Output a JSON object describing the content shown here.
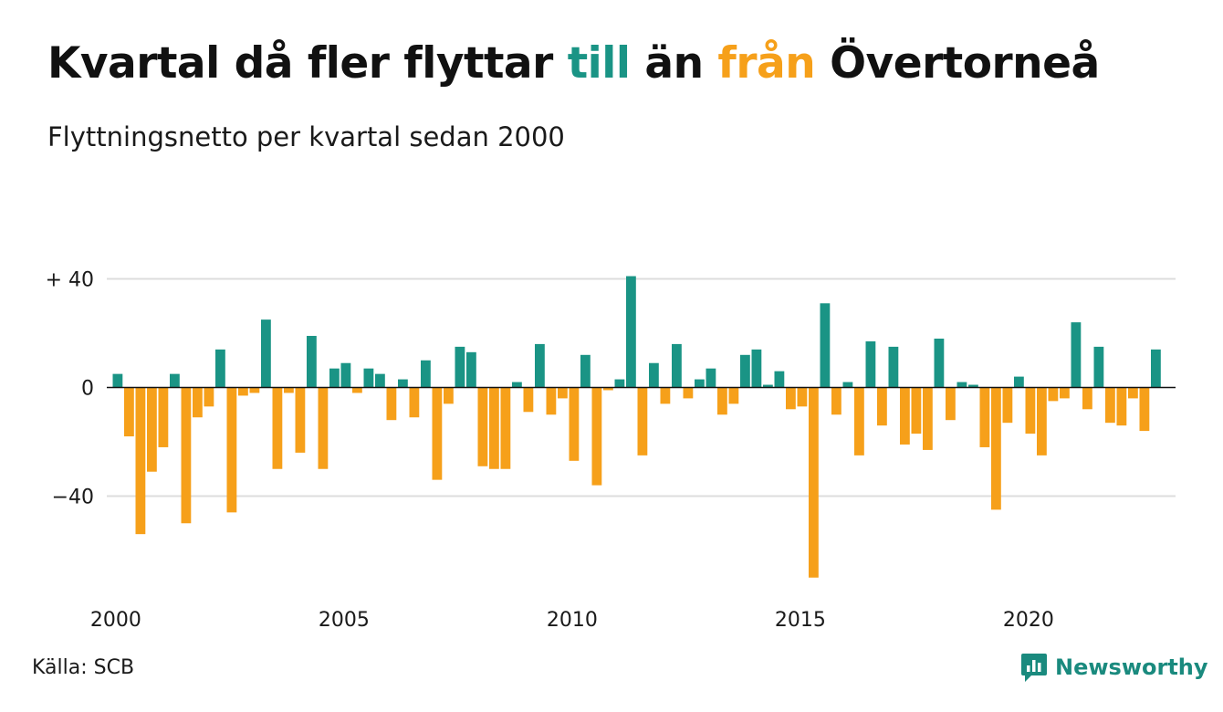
{
  "title": {
    "part1": "Kvartal då fler flyttar ",
    "word_in": "till",
    "part2": " än ",
    "word_out": "från",
    "part3": " Övertorneå"
  },
  "subtitle": "Flyttningsnetto per kvartal sedan 2000",
  "source": "Källa: SCB",
  "brand": "Newsworthy",
  "colors": {
    "positive": "#1a9485",
    "negative": "#f6a01a",
    "grid": "#dddddd",
    "zero_line": "#111111",
    "text": "#111111",
    "brand": "#1a8a7e"
  },
  "chart_data": {
    "type": "bar",
    "start_year": 2000,
    "quarters_per_year": 4,
    "values": [
      5,
      -18,
      -54,
      -31,
      -22,
      5,
      -50,
      -11,
      -7,
      14,
      -46,
      -3,
      -2,
      25,
      -30,
      -2,
      -24,
      19,
      -30,
      7,
      9,
      -2,
      7,
      5,
      -12,
      3,
      -11,
      10,
      -34,
      -6,
      15,
      13,
      -29,
      -30,
      -30,
      2,
      -9,
      16,
      -10,
      -4,
      -27,
      12,
      -36,
      -1,
      3,
      41,
      -25,
      9,
      -6,
      16,
      -4,
      3,
      7,
      -10,
      -6,
      12,
      14,
      1,
      6,
      -8,
      -7,
      -70,
      31,
      -10,
      2,
      -25,
      17,
      -14,
      15,
      -21,
      -17,
      -23,
      18,
      -12,
      2,
      1,
      -22,
      -45,
      -13,
      4,
      -17,
      -25,
      -5,
      -4,
      24,
      -8,
      15,
      -13,
      -14,
      -4,
      -16,
      14
    ],
    "ylim": [
      -70,
      42
    ],
    "yticks": [
      40,
      0,
      -40
    ],
    "ytick_labels": [
      "+ 40",
      "0",
      "−40"
    ],
    "xticks": [
      {
        "label": "2000",
        "year": 2000
      },
      {
        "label": "2005",
        "year": 2005
      },
      {
        "label": "2010",
        "year": 2010
      },
      {
        "label": "2015",
        "year": 2015
      },
      {
        "label": "2020",
        "year": 2020
      }
    ],
    "grid": true,
    "legend": "none"
  }
}
